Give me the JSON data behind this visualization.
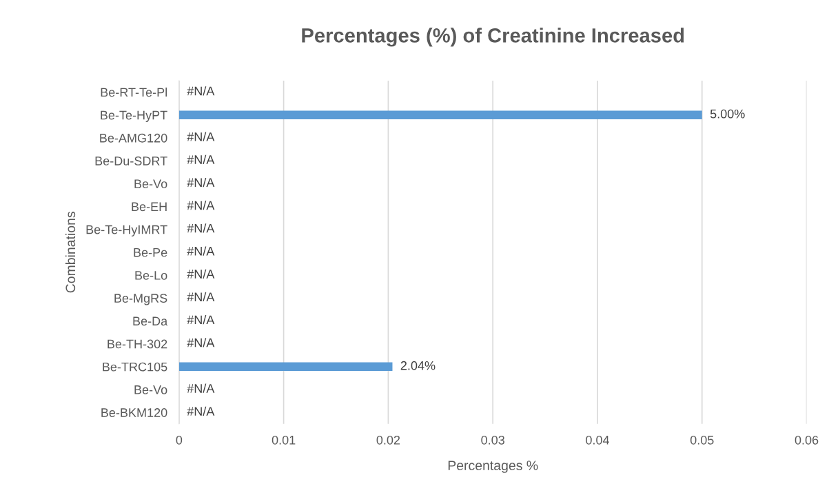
{
  "chart_data": {
    "type": "bar",
    "orientation": "horizontal",
    "title": "Percentages (%) of Creatinine Increased",
    "xlabel": "Percentages %",
    "ylabel": "Combinations",
    "categories": [
      "Be-RT-Te-Pl",
      "Be-Te-HyPT",
      "Be-AMG120",
      "Be-Du-SDRT",
      "Be-Vo",
      "Be-EH",
      "Be-Te-HyIMRT",
      "Be-Pe",
      "Be-Lo",
      "Be-MgRS",
      "Be-Da",
      "Be-TH-302",
      "Be-TRC105",
      "Be-Vo",
      "Be-BKM120"
    ],
    "values": [
      null,
      0.05,
      null,
      null,
      null,
      null,
      null,
      null,
      null,
      null,
      null,
      null,
      0.0204,
      null,
      null
    ],
    "value_labels": [
      "#N/A",
      "5.00%",
      "#N/A",
      "#N/A",
      "#N/A",
      "#N/A",
      "#N/A",
      "#N/A",
      "#N/A",
      "#N/A",
      "#N/A",
      "#N/A",
      "2.04%",
      "#N/A",
      "#N/A"
    ],
    "color": "#5b9bd5",
    "xlim": [
      0,
      0.06
    ],
    "xticks": [
      0,
      0.01,
      0.02,
      0.03,
      0.04,
      0.05,
      0.06
    ],
    "grid": "x",
    "legend": false
  }
}
